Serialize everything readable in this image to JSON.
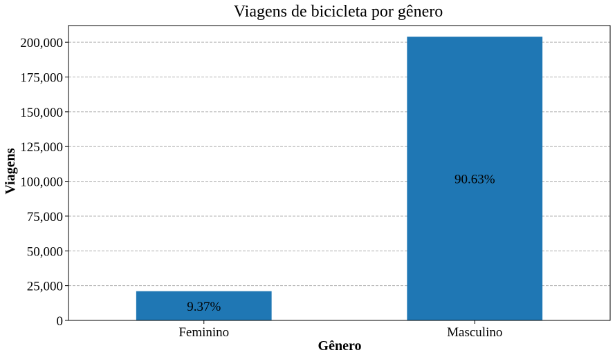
{
  "chart_data": {
    "type": "bar",
    "title": "Viagens de bicicleta por gênero",
    "xlabel": "Gênero",
    "ylabel": "Viagens",
    "categories": [
      "Feminino",
      "Masculino"
    ],
    "values": [
      21000,
      204000
    ],
    "bar_labels": [
      "9.37%",
      "90.63%"
    ],
    "ylim": [
      0,
      212000
    ],
    "yticks": [
      0,
      25000,
      50000,
      75000,
      100000,
      125000,
      150000,
      175000,
      200000
    ],
    "ytick_labels": [
      "0",
      "25,000",
      "50,000",
      "75,000",
      "100,000",
      "125,000",
      "150,000",
      "175,000",
      "200,000"
    ],
    "grid": "y-dashed",
    "color": "#1f77b4"
  }
}
